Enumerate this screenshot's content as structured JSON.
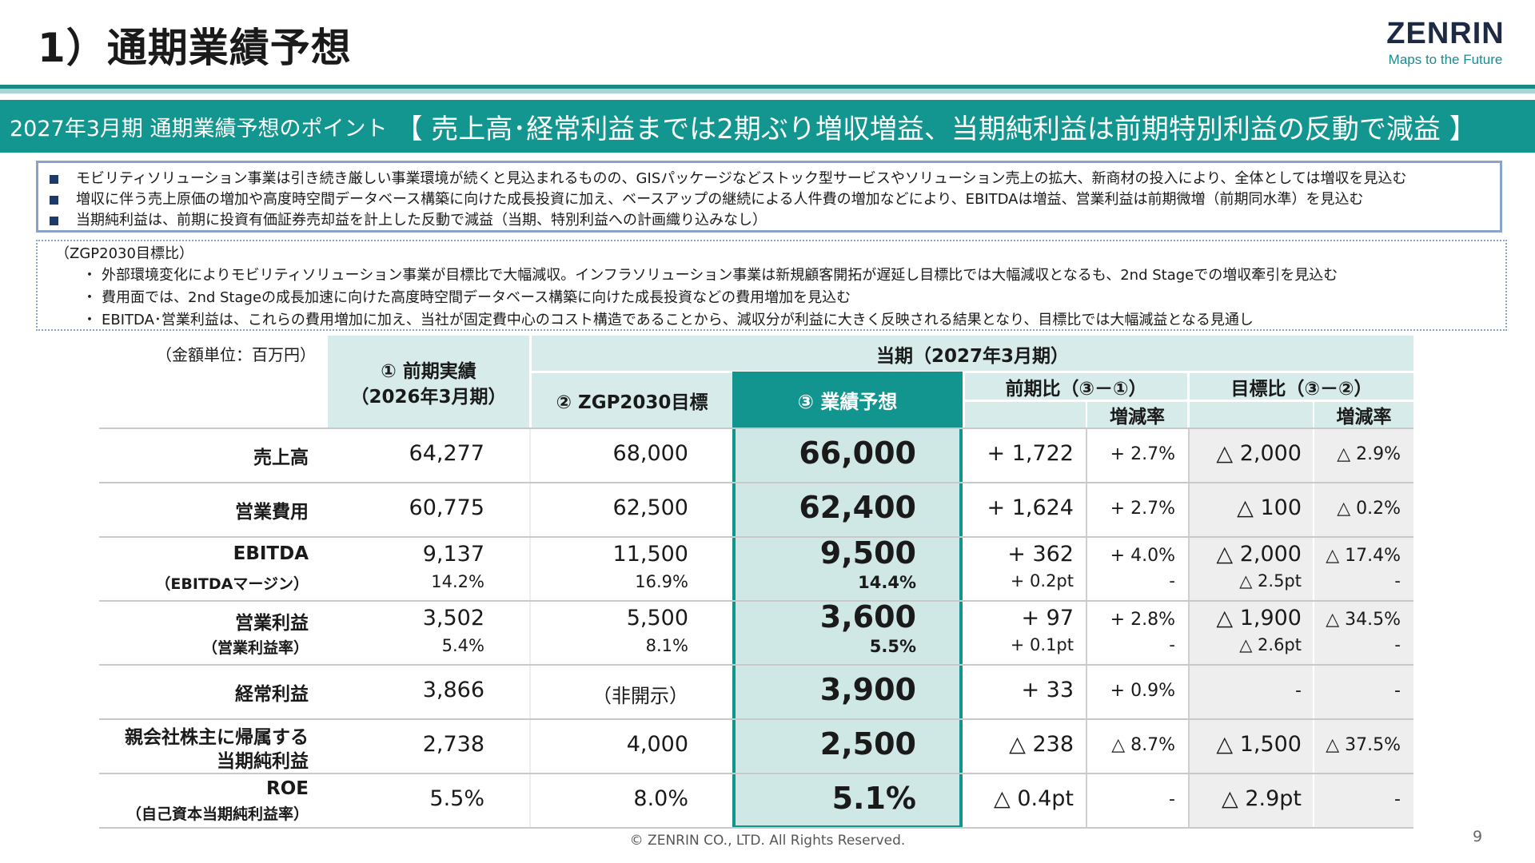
{
  "page": {
    "title": "1）通期業績予想",
    "logo_word": "ZENRIN",
    "logo_tagline": "Maps to the Future",
    "page_number": "9",
    "copyright": "© ZENRIN CO., LTD. All Rights Reserved."
  },
  "banner": {
    "lead": "2027年3月期 通期業績予想のポイント",
    "main": "【 売上高･経常利益までは2期ぶり増収増益、当期純利益は前期特別利益の反動で減益 】"
  },
  "points": [
    "モビリティソリューション事業は引き続き厳しい事業環境が続くと見込まれるものの、GISパッケージなどストック型サービスやソリューション売上の拡大、新商材の投入により、全体としては増収を見込む",
    "増収に伴う売上原価の増加や高度時空間データベース構築に向けた成長投資に加え、ベースアップの継続による人件費の増加などにより、EBITDAは増益、営業利益は前期微増（前期同水準）を見込む",
    "当期純利益は、前期に投資有価証券売却益を計上した反動で減益（当期、特別利益への計画織り込みなし）"
  ],
  "zgp": {
    "heading": "（ZGP2030目標比）",
    "items": [
      "外部環境変化によりモビリティソリューション事業が目標比で大幅減収。インフラソリューション事業は新規顧客開拓が遅延し目標比では大幅減収となるも、2nd Stageでの増収牽引を見込む",
      "費用面では、2nd Stageの成長加速に向けた高度時空間データベース構築に向けた成長投資などの費用増加を見込む",
      "EBITDA･営業利益は、これらの費用増加に加え、当社が固定費中心のコスト構造であることから、減収分が利益に大きく反映される結果となり、目標比では大幅減益となる見通し"
    ]
  },
  "table": {
    "unit": "（金額単位：百万円）",
    "headers": {
      "prev_line1": "① 前期実績",
      "prev_line2": "（2026年3月期）",
      "current_period": "当期（2027年3月期）",
      "target": "② ZGP2030目標",
      "forecast": "③ 業績予想",
      "yoy": "前期比（③－①）",
      "vs_target": "目標比（③－②）",
      "rate": "増減率",
      "rate2": "増減率"
    },
    "rows": [
      {
        "label": "売上高",
        "sub_label": "",
        "prev": "64,277",
        "target": "68,000",
        "forecast": "66,000",
        "yoy": "+ 1,722",
        "yoy_rate": "+ 2.7%",
        "vs": "△ 2,000",
        "vs_rate": "△ 2.9%"
      },
      {
        "label": "営業費用",
        "sub_label": "",
        "prev": "60,775",
        "target": "62,500",
        "forecast": "62,400",
        "yoy": "+ 1,624",
        "yoy_rate": "+ 2.7%",
        "vs": "△ 100",
        "vs_rate": "△ 0.2%"
      },
      {
        "label": "EBITDA",
        "sub_label": "（EBITDAマージン）",
        "prev": "9,137",
        "prev_sub": "14.2%",
        "target": "11,500",
        "target_sub": "16.9%",
        "forecast": "9,500",
        "forecast_sub": "14.4%",
        "yoy": "+ 362",
        "yoy_sub": "+ 0.2pt",
        "yoy_rate": "+ 4.0%",
        "yoy_rate_sub": "-",
        "vs": "△ 2,000",
        "vs_sub": "△ 2.5pt",
        "vs_rate": "△ 17.4%",
        "vs_rate_sub": "-"
      },
      {
        "label": "営業利益",
        "sub_label": "（営業利益率）",
        "prev": "3,502",
        "prev_sub": "5.4%",
        "target": "5,500",
        "target_sub": "8.1%",
        "forecast": "3,600",
        "forecast_sub": "5.5%",
        "yoy": "+ 97",
        "yoy_sub": "+ 0.1pt",
        "yoy_rate": "+ 2.8%",
        "yoy_rate_sub": "-",
        "vs": "△ 1,900",
        "vs_sub": "△ 2.6pt",
        "vs_rate": "△ 34.5%",
        "vs_rate_sub": "-"
      },
      {
        "label": "経常利益",
        "sub_label": "",
        "prev": "3,866",
        "target": "（非開示）",
        "forecast": "3,900",
        "yoy": "+ 33",
        "yoy_rate": "+ 0.9%",
        "vs": "-",
        "vs_rate": "-"
      },
      {
        "label": "親会社株主に帰属する",
        "label2": "当期純利益",
        "prev": "2,738",
        "target": "4,000",
        "forecast": "2,500",
        "yoy": "△ 238",
        "yoy_rate": "△ 8.7%",
        "vs": "△ 1,500",
        "vs_rate": "△ 37.5%"
      },
      {
        "label": "ROE",
        "sub_label": "（自己資本当期純利益率）",
        "prev": "5.5%",
        "target": "8.0%",
        "forecast": "5.1%",
        "yoy": "△ 0.4pt",
        "yoy_rate": "-",
        "vs": "△ 2.9pt",
        "vs_rate": "-"
      }
    ]
  }
}
